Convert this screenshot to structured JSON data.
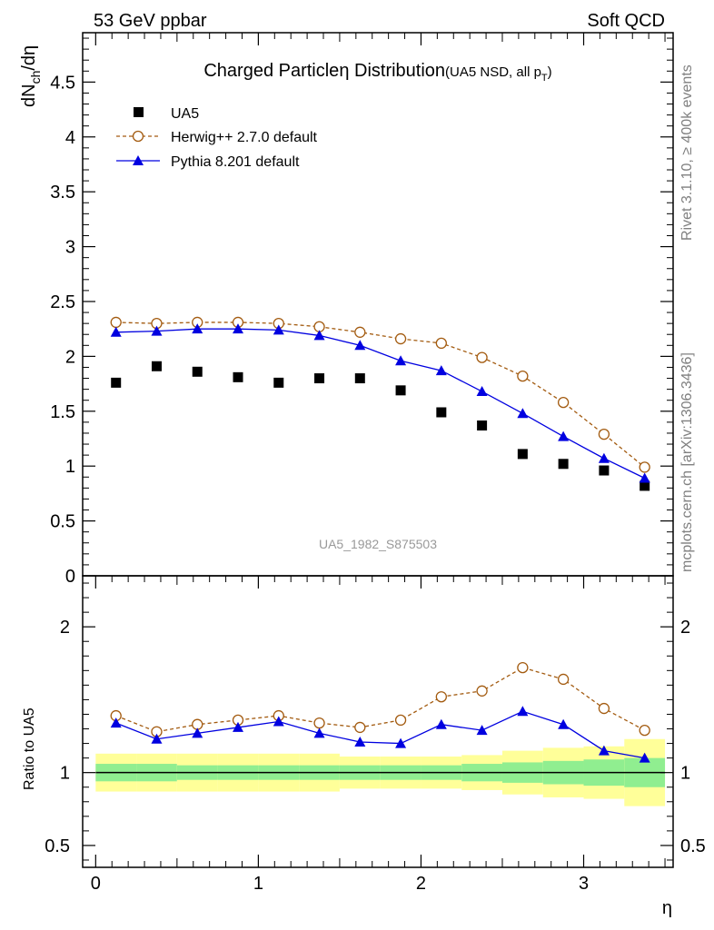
{
  "header": {
    "left": "53 GeV ppbar",
    "right": "Soft QCD"
  },
  "side_labels": {
    "rivet": "Rivet 3.1.10, ≥ 400k events",
    "mcplots": "mcplots.cern.ch [arXiv:1306.3436]"
  },
  "analysis_id": "UA5_1982_S875503",
  "chart_data": [
    {
      "type": "scatter",
      "title_main": "Charged Particle",
      "title_eta": "η",
      "title_rest": " Distribution",
      "title_sub": "(UA5 NSD, all p",
      "title_sub_idx": "T",
      "title_sub_end": ")",
      "ylabel_main": "dN",
      "ylabel_sub": "ch",
      "ylabel_end": "/dη",
      "ylim": [
        0,
        4.95
      ],
      "xlim": [
        -0.08,
        3.55
      ],
      "yticks": [
        0,
        0.5,
        1,
        1.5,
        2,
        2.5,
        3,
        3.5,
        4,
        4.5
      ],
      "ytick_labels": [
        "0",
        "0.5",
        "1",
        "1.5",
        "2",
        "2.5",
        "3",
        "3.5",
        "4",
        "4.5"
      ],
      "x": [
        0.125,
        0.375,
        0.625,
        0.875,
        1.125,
        1.375,
        1.625,
        1.875,
        2.125,
        2.375,
        2.625,
        2.875,
        3.125,
        3.375
      ],
      "series": [
        {
          "name": "UA5",
          "style": "data",
          "color": "#000000",
          "values": [
            1.76,
            1.91,
            1.86,
            1.81,
            1.76,
            1.8,
            1.8,
            1.69,
            1.49,
            1.37,
            1.11,
            1.02,
            0.96,
            0.82
          ]
        },
        {
          "name": "Herwig++ 2.7.0 default",
          "style": "dashed-circle",
          "color": "#a35b10",
          "values": [
            2.31,
            2.3,
            2.31,
            2.31,
            2.3,
            2.27,
            2.22,
            2.16,
            2.12,
            1.99,
            1.82,
            1.58,
            1.29,
            0.99
          ]
        },
        {
          "name": "Pythia 8.201 default",
          "style": "solid-triangle",
          "color": "#0000e0",
          "values": [
            2.22,
            2.23,
            2.25,
            2.25,
            2.24,
            2.19,
            2.1,
            1.96,
            1.87,
            1.68,
            1.48,
            1.27,
            1.07,
            0.89
          ]
        }
      ]
    },
    {
      "type": "line",
      "ylabel": "Ratio to UA5",
      "xlabel": "η",
      "ylim": [
        0.35,
        2.35
      ],
      "xlim": [
        -0.08,
        3.55
      ],
      "yticks": [
        0.5,
        1,
        2
      ],
      "ytick_labels": [
        "0.5",
        "1",
        "2"
      ],
      "xticks": [
        0,
        1,
        2,
        3
      ],
      "xtick_labels": [
        "0",
        "1",
        "2",
        "3"
      ],
      "x_edges": [
        0,
        0.25,
        0.5,
        0.75,
        1.0,
        1.25,
        1.5,
        1.75,
        2.0,
        2.25,
        2.5,
        2.75,
        3.0,
        3.25,
        3.5
      ],
      "band_stat": [
        0.06,
        0.06,
        0.05,
        0.05,
        0.05,
        0.05,
        0.05,
        0.05,
        0.05,
        0.06,
        0.07,
        0.08,
        0.09,
        0.1
      ],
      "band_total": [
        0.13,
        0.13,
        0.13,
        0.13,
        0.13,
        0.13,
        0.11,
        0.11,
        0.11,
        0.12,
        0.15,
        0.17,
        0.18,
        0.23
      ],
      "x": [
        0.125,
        0.375,
        0.625,
        0.875,
        1.125,
        1.375,
        1.625,
        1.875,
        2.125,
        2.375,
        2.625,
        2.875,
        3.125,
        3.375
      ],
      "series": [
        {
          "name": "Herwig++ 2.7.0 default",
          "style": "dashed-circle",
          "color": "#a35b10",
          "values": [
            1.39,
            1.28,
            1.33,
            1.36,
            1.39,
            1.34,
            1.31,
            1.36,
            1.52,
            1.56,
            1.72,
            1.64,
            1.44,
            1.29
          ]
        },
        {
          "name": "Pythia 8.201 default",
          "style": "solid-triangle",
          "color": "#0000e0",
          "values": [
            1.34,
            1.23,
            1.27,
            1.31,
            1.35,
            1.27,
            1.21,
            1.2,
            1.33,
            1.29,
            1.42,
            1.33,
            1.15,
            1.1
          ]
        }
      ]
    }
  ]
}
